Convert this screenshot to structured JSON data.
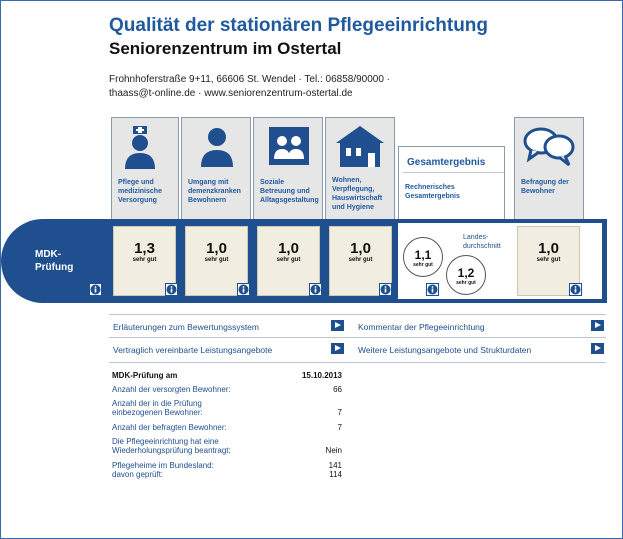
{
  "header": {
    "title": "Qualität der stationären Pflegeeinrichtung",
    "subtitle": "Seniorenzentrum im Ostertal",
    "address_line1": "Frohnhoferstraße 9+11, 66606 St. Wendel · Tel.: 06858/90000 ·",
    "address_line2": "thaass@t-online.de · www.seniorenzentrum-ostertal.de"
  },
  "categories": [
    {
      "label": "Pflege und medizinische Versorgung",
      "icon": "nurse-icon",
      "score": "1,3",
      "grade": "sehr gut"
    },
    {
      "label": "Umgang mit demenzkranken Bewohnern",
      "icon": "person-icon",
      "score": "1,0",
      "grade": "sehr gut"
    },
    {
      "label": "Soziale Betreuung und Alltagsgestaltung",
      "icon": "group-icon",
      "score": "1,0",
      "grade": "sehr gut"
    },
    {
      "label": "Wohnen, Verpflegung, Hauswirtschaft und Hygiene",
      "icon": "house-icon",
      "score": "1,0",
      "grade": "sehr gut"
    }
  ],
  "gesamt": {
    "title": "Gesamtergebnis",
    "label": "Rechnerisches Gesamtergebnis",
    "score": "1,1",
    "grade": "sehr gut",
    "landes_label": "Landes-durchschnitt",
    "landes_score": "1,2",
    "landes_grade": "sehr gut"
  },
  "befragung": {
    "label": "Befragung der Bewohner",
    "icon": "speech-bubbles-icon",
    "score": "1,0",
    "grade": "sehr gut"
  },
  "mdk_label": "MDK-Prüfung",
  "links": [
    "Erläuterungen zum Bewertungssystem",
    "Kommentar der Pflegeeinrichtung",
    "Vertraglich vereinbarte Leistungsangebote",
    "Weitere Leistungsangebote und Strukturdaten"
  ],
  "details": {
    "head_label": "MDK-Prüfung am",
    "head_value": "15.10.2013",
    "rows": [
      {
        "label": "Anzahl der versorgten Bewohner:",
        "value": "66"
      },
      {
        "label": "Anzahl der in die Prüfung einbezogenen Bewohner:",
        "value": "7"
      },
      {
        "label": "Anzahl der befragten Bewohner:",
        "value": "7"
      },
      {
        "label": "Die Pflegeeinrichtung hat eine Wiederholungsprüfung beantragt:",
        "value": "Nein"
      },
      {
        "label": "Pflegeheime im Bundesland:",
        "value": "141"
      },
      {
        "label": "davon geprüft:",
        "value": "114"
      }
    ]
  },
  "colors": {
    "accent": "#1f4f8f",
    "title": "#1f5a9e",
    "score_bg": "#f1ede0",
    "card_bg": "#e6e6e6"
  }
}
